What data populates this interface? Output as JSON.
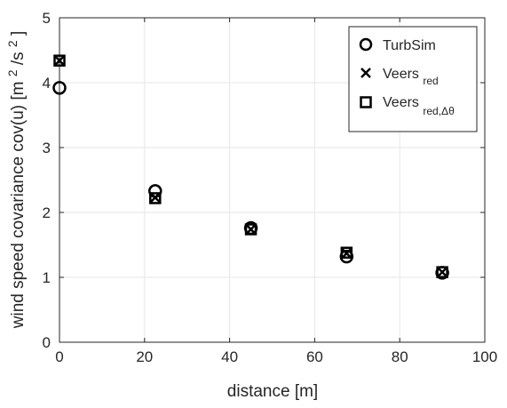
{
  "chart_data": {
    "type": "scatter",
    "xlabel": "distance [m]",
    "ylabel": {
      "main": "wind speed covariance cov(u) [m ",
      "unit_sup_1": "2",
      "mid": "/s",
      "unit_sup_2": "2",
      "close": "]"
    },
    "xlim": [
      0,
      100
    ],
    "ylim": [
      0,
      5
    ],
    "xticks": [
      "0",
      "20",
      "40",
      "60",
      "80",
      "100"
    ],
    "yticks": [
      "0",
      "1",
      "2",
      "3",
      "4",
      "5"
    ],
    "grid": true,
    "legend_position": "top-right",
    "series": [
      {
        "name": "TurbSim",
        "legend_main": "TurbSim",
        "legend_sub": "",
        "marker": "circle",
        "x": [
          0,
          22.5,
          45,
          67.5,
          90
        ],
        "y": [
          3.92,
          2.33,
          1.76,
          1.32,
          1.07
        ]
      },
      {
        "name": "Veers_red",
        "legend_main": "Veers",
        "legend_sub": "red",
        "marker": "x",
        "x": [
          0,
          22.5,
          45,
          67.5,
          90
        ],
        "y": [
          4.34,
          2.23,
          1.74,
          1.37,
          1.08
        ]
      },
      {
        "name": "Veers_red,Δθ",
        "legend_main": "Veers",
        "legend_sub": "red,Δθ",
        "marker": "square",
        "x": [
          0,
          22.5,
          45,
          67.5,
          90
        ],
        "y": [
          4.34,
          2.22,
          1.74,
          1.38,
          1.08
        ]
      }
    ],
    "colors": {
      "axis": "#262626",
      "grid": "#e6e6e6",
      "marker": "#000000",
      "background": "#ffffff"
    }
  }
}
